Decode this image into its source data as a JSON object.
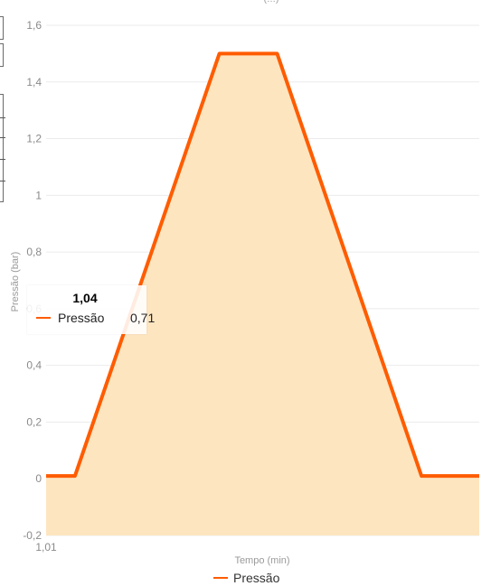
{
  "chart_data": {
    "type": "area",
    "title": "",
    "xlabel": "Tempo (min)",
    "ylabel": "Pressão (bar)",
    "x_tick_labels": [
      "1,01"
    ],
    "y_ticks": [
      "-0,2",
      "0",
      "0,2",
      "0,4",
      "0,6",
      "0,8",
      "1",
      "1,2",
      "1,4",
      "1,6"
    ],
    "ylim": [
      -0.2,
      1.6
    ],
    "grid": true,
    "legend_position": "bottom",
    "series": [
      {
        "name": "Pressão",
        "color": "#ff5c00",
        "fill_color": "#fde5c0",
        "points": [
          {
            "x": 0,
            "y": 0.01
          },
          {
            "x": 1,
            "y": 0.01
          },
          {
            "x": 6,
            "y": 1.5
          },
          {
            "x": 8,
            "y": 1.5
          },
          {
            "x": 13,
            "y": 0.01
          },
          {
            "x": 15,
            "y": 0.01
          }
        ]
      }
    ],
    "tooltip": {
      "title": "1,04",
      "series": "Pressão",
      "value": "0,71"
    }
  }
}
